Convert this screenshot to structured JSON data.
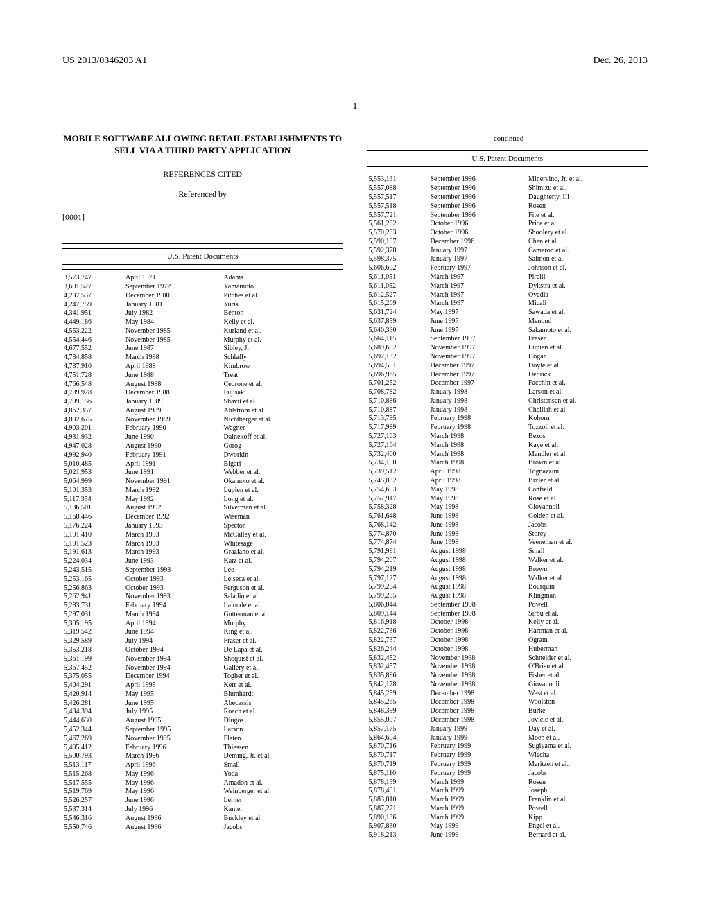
{
  "header": {
    "pub_number": "US 2013/0346203 A1",
    "pub_date": "Dec. 26, 2013"
  },
  "page_number": "1",
  "title": "MOBILE SOFTWARE ALLOWING RETAIL ESTABLISHMENTS TO SELL VIA A THIRD PARTY APPLICATION",
  "refs_heading": "REFERENCES CITED",
  "refs_sub": "Referenced by",
  "para_num": "[0001]",
  "table_title": "U.S. Patent Documents",
  "continued": "-continued",
  "left": [
    [
      "3,573,747",
      "April 1971",
      "Adams"
    ],
    [
      "3,691,527",
      "September 1972",
      "Yamamoto"
    ],
    [
      "4,237,537",
      "December 1980",
      "Pitches et al."
    ],
    [
      "4,247,759",
      "January 1981",
      "Yuris"
    ],
    [
      "4,341,951",
      "July 1982",
      "Benton"
    ],
    [
      "4,449,186",
      "May 1984",
      "Kelly et al."
    ],
    [
      "4,553,222",
      "November 1985",
      "Kurland et al."
    ],
    [
      "4,554,446",
      "November 1985",
      "Murphy et al."
    ],
    [
      "4,677,552",
      "June 1987",
      "Sibley, Jr."
    ],
    [
      "4,734,858",
      "March 1988",
      "Schlafly"
    ],
    [
      "4,737,910",
      "April 1988",
      "Kimbrow"
    ],
    [
      "4,751,728",
      "June 1988",
      "Treat"
    ],
    [
      "4,766,548",
      "August 1988",
      "Cedrone et al."
    ],
    [
      "4,789,928",
      "December 1988",
      "Fujisaki"
    ],
    [
      "4,799,156",
      "January 1989",
      "Shavit et al."
    ],
    [
      "4,862,357",
      "August 1989",
      "Ahlstrom et al."
    ],
    [
      "4,882,675",
      "November 1989",
      "Nichtberger et al."
    ],
    [
      "4,903,201",
      "February 1990",
      "Wagner"
    ],
    [
      "4,931,932",
      "June 1990",
      "Dalnekoff et al."
    ],
    [
      "4,947,028",
      "August 1990",
      "Gorog"
    ],
    [
      "4,992,940",
      "February 1991",
      "Dworkin"
    ],
    [
      "5,010,485",
      "April 1991",
      "Bigari"
    ],
    [
      "5,021,953",
      "June 1991",
      "Webber et al."
    ],
    [
      "5,064,999",
      "November 1991",
      "Okamoto et al."
    ],
    [
      "5,101,353",
      "March 1992",
      "Lupien et al."
    ],
    [
      "5,117,354",
      "May 1992",
      "Long et al."
    ],
    [
      "5,136,501",
      "August 1992",
      "Silverman et al."
    ],
    [
      "5,168,446",
      "December 1992",
      "Wiseman"
    ],
    [
      "5,176,224",
      "January 1993",
      "Spector"
    ],
    [
      "5,191,410",
      "March 1993",
      "McCalley et al."
    ],
    [
      "5,191,523",
      "March 1993",
      "Whitesage"
    ],
    [
      "5,191,613",
      "March 1993",
      "Graziano et al."
    ],
    [
      "5,224,034",
      "June 1993",
      "Katz et al."
    ],
    [
      "5,243,515",
      "September 1993",
      "Lee"
    ],
    [
      "5,253,165",
      "October 1993",
      "Leiseca et al."
    ],
    [
      "5,256,863",
      "October 1993",
      "Ferguson et al."
    ],
    [
      "5,262,941",
      "November 1993",
      "Saladin et al."
    ],
    [
      "5,283,731",
      "February 1994",
      "Lalonde et al."
    ],
    [
      "5,297,031",
      "March 1994",
      "Gutterman et al."
    ],
    [
      "5,305,195",
      "April 1994",
      "Murphy"
    ],
    [
      "5,319,542",
      "June 1994",
      "King et al."
    ],
    [
      "5,329,589",
      "July 1994",
      "Fraser et al."
    ],
    [
      "5,353,218",
      "October 1994",
      "De Lapa et al."
    ],
    [
      "5,361,199",
      "November 1994",
      "Shoquist et al."
    ],
    [
      "5,367,452",
      "November 1994",
      "Gallery et al."
    ],
    [
      "5,375,055",
      "December 1994",
      "Togher et al."
    ],
    [
      "5,404,291",
      "April 1995",
      "Kerr et al."
    ],
    [
      "5,420,914",
      "May 1995",
      "Blumhardt"
    ],
    [
      "5,426,281",
      "June 1995",
      "Abecassis"
    ],
    [
      "5,434,394",
      "July 1995",
      "Roach et al."
    ],
    [
      "5,444,630",
      "August 1995",
      "Dlugos"
    ],
    [
      "5,452,344",
      "September 1995",
      "Larson"
    ],
    [
      "5,467,269",
      "November 1995",
      "Flaten"
    ],
    [
      "5,495,412",
      "February 1996",
      "Thiessen"
    ],
    [
      "5,500,793",
      "March 1996",
      "Deming, Jr. et al."
    ],
    [
      "5,513,117",
      "April 1996",
      "Small"
    ],
    [
      "5,515,268",
      "May 1996",
      "Yoda"
    ],
    [
      "5,517,555",
      "May 1996",
      "Amadon et al."
    ],
    [
      "5,519,769",
      "May 1996",
      "Weinberger et al."
    ],
    [
      "5,526,257",
      "June 1996",
      "Lerner"
    ],
    [
      "5,537,314",
      "July 1996",
      "Kanter"
    ],
    [
      "5,546,316",
      "August 1996",
      "Buckley et al."
    ],
    [
      "5,550,746",
      "August 1996",
      "Jacobs"
    ]
  ],
  "right": [
    [
      "5,553,131",
      "September 1996",
      "Minervino, Jr. et al."
    ],
    [
      "5,557,088",
      "September 1996",
      "Shimizu et al."
    ],
    [
      "5,557,517",
      "September 1996",
      "Daughterty, III"
    ],
    [
      "5,557,518",
      "September 1996",
      "Rosen"
    ],
    [
      "5,557,721",
      "September 1996",
      "Fite et al."
    ],
    [
      "5,561,282",
      "October 1996",
      "Price et al."
    ],
    [
      "5,570,283",
      "October 1996",
      "Shoolery et al."
    ],
    [
      "5,590,197",
      "December 1996",
      "Chen et al."
    ],
    [
      "5,592,378",
      "January 1997",
      "Cameron et al."
    ],
    [
      "5,598,375",
      "January 1997",
      "Salmon et al."
    ],
    [
      "5,606,602",
      "February 1997",
      "Johnson et al."
    ],
    [
      "5,611,051",
      "March 1997",
      "Pirelli"
    ],
    [
      "5,611,052",
      "March 1997",
      "Dykstra et al."
    ],
    [
      "5,612,527",
      "March 1997",
      "Ovadia"
    ],
    [
      "5,615,269",
      "March 1997",
      "Micali"
    ],
    [
      "5,631,724",
      "May 1997",
      "Sawada et al."
    ],
    [
      "5,637,859",
      "June 1997",
      "Menoud"
    ],
    [
      "5,640,390",
      "June 1997",
      "Sakamoto et al."
    ],
    [
      "5,664,115",
      "September 1997",
      "Fraser"
    ],
    [
      "5,689,652",
      "November 1997",
      "Lupien et al."
    ],
    [
      "5,692,132",
      "November 1997",
      "Hogan"
    ],
    [
      "5,694,551",
      "December 1997",
      "Doyle et al."
    ],
    [
      "5,696,965",
      "December 1997",
      "Dedrick"
    ],
    [
      "5,701,252",
      "December 1997",
      "Facchin et al."
    ],
    [
      "5,708,782",
      "January 1998",
      "Larson et al."
    ],
    [
      "5,710,886",
      "January 1998",
      "Christensen et al."
    ],
    [
      "5,710,887",
      "January 1998",
      "Chelliah et al."
    ],
    [
      "5,713,795",
      "February 1998",
      "Kohorn"
    ],
    [
      "5,717,989",
      "February 1998",
      "Tozzoli et al."
    ],
    [
      "5,727,163",
      "March 1998",
      "Bezos"
    ],
    [
      "5,727,164",
      "March 1998",
      "Kaye et al."
    ],
    [
      "5,732,400",
      "March 1998",
      "Mandler et al."
    ],
    [
      "5,734,150",
      "March 1998",
      "Brown et al."
    ],
    [
      "5,739,512",
      "April 1998",
      "Tognazzini"
    ],
    [
      "5,745,882",
      "April 1998",
      "Bixler et al."
    ],
    [
      "5,754,653",
      "May 1998",
      "Canfield"
    ],
    [
      "5,757,917",
      "May 1998",
      "Rose et al."
    ],
    [
      "5,758,328",
      "May 1998",
      "Giovannoli"
    ],
    [
      "5,761,648",
      "June 1998",
      "Golden et al."
    ],
    [
      "5,768,142",
      "June 1998",
      "Jacobs"
    ],
    [
      "5,774,870",
      "June 1998",
      "Storey"
    ],
    [
      "5,774,874",
      "June 1998",
      "Veeneman et al."
    ],
    [
      "5,791,991",
      "August 1998",
      "Small"
    ],
    [
      "5,794,207",
      "August 1998",
      "Walker et al."
    ],
    [
      "5,794,219",
      "August 1998",
      "Brown"
    ],
    [
      "5,797,127",
      "August 1998",
      "Walker et al."
    ],
    [
      "5,799,284",
      "August 1998",
      "Bourquin"
    ],
    [
      "5,799,285",
      "August 1998",
      "Klingman"
    ],
    [
      "5,806,044",
      "September 1998",
      "Powell"
    ],
    [
      "5,809,144",
      "September 1998",
      "Sirbu et al."
    ],
    [
      "5,816,918",
      "October 1998",
      "Kelly et al."
    ],
    [
      "5,822,736",
      "October 1998",
      "Hartman et al."
    ],
    [
      "5,822,737",
      "October 1998",
      "Ogram"
    ],
    [
      "5,826,244",
      "October 1998",
      "Huberman"
    ],
    [
      "5,832,452",
      "November 1998",
      "Schneider et al."
    ],
    [
      "5,832,457",
      "November 1998",
      "O'Brien et al."
    ],
    [
      "5,835,896",
      "November 1998",
      "Fisher et al."
    ],
    [
      "5,842,178",
      "November 1998",
      "Giovannoli"
    ],
    [
      "5,845,259",
      "December 1998",
      "West et al."
    ],
    [
      "5,845,265",
      "December 1998",
      "Woolston"
    ],
    [
      "5,848,399",
      "December 1998",
      "Burke"
    ],
    [
      "5,855,007",
      "December 1998",
      "Jovicic et al."
    ],
    [
      "5,857,175",
      "January 1999",
      "Day et al."
    ],
    [
      "5,864,604",
      "January 1999",
      "Moen et al."
    ],
    [
      "5,870,716",
      "February 1999",
      "Sugiyama et al."
    ],
    [
      "5,870,717",
      "February 1999",
      "Wiecha"
    ],
    [
      "5,870,719",
      "February 1999",
      "Maritzen et al."
    ],
    [
      "5,875,110",
      "February 1999",
      "Jacobs"
    ],
    [
      "5,878,139",
      "March 1999",
      "Rosen"
    ],
    [
      "5,878,401",
      "March 1999",
      "Joseph"
    ],
    [
      "5,883,810",
      "March 1999",
      "Franklin et al."
    ],
    [
      "5,887,271",
      "March 1999",
      "Powell"
    ],
    [
      "5,890,136",
      "March 1999",
      "Kipp"
    ],
    [
      "5,907,830",
      "May 1999",
      "Engel et al."
    ],
    [
      "5,918,213",
      "June 1999",
      "Bernard et al."
    ]
  ]
}
